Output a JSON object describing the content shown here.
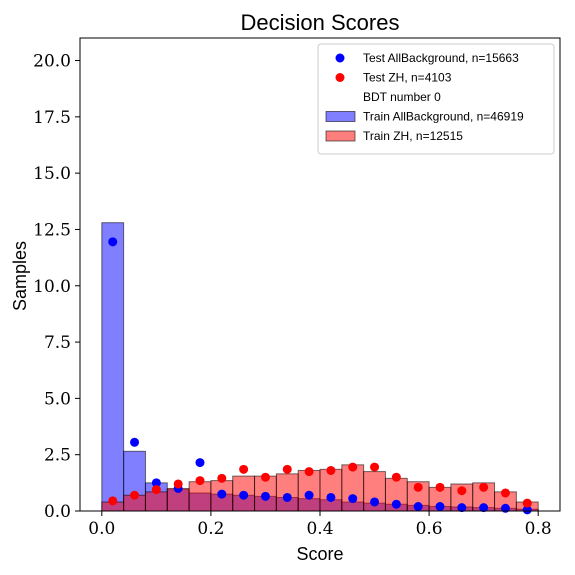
{
  "chart_data": {
    "type": "bar",
    "title": "Decision Scores",
    "xlabel": "Score",
    "ylabel": "Samples",
    "xlim": [
      -0.04,
      0.84
    ],
    "ylim": [
      0,
      21
    ],
    "xticks": [
      0.0,
      0.2,
      0.4,
      0.6,
      0.8
    ],
    "xtick_labels": [
      "0.0",
      "0.2",
      "0.4",
      "0.6",
      "0.8"
    ],
    "yticks": [
      0.0,
      2.5,
      5.0,
      7.5,
      10.0,
      12.5,
      15.0,
      17.5,
      20.0
    ],
    "ytick_labels": [
      "0.0",
      "2.5",
      "5.0",
      "7.5",
      "10.0",
      "12.5",
      "15.0",
      "17.5",
      "20.0"
    ],
    "grid": false,
    "legend_position": "top-right",
    "bin_edges": [
      0.0,
      0.04,
      0.08,
      0.12,
      0.16,
      0.2,
      0.24,
      0.28,
      0.32,
      0.36,
      0.4,
      0.44,
      0.48,
      0.52,
      0.56,
      0.6,
      0.64,
      0.68,
      0.72,
      0.76,
      0.8
    ],
    "legend_note": "BDT number 0",
    "histograms": [
      {
        "name": "Train AllBackground, n=46919",
        "color": "#0000ff",
        "values": [
          12.8,
          2.65,
          1.25,
          0.95,
          0.8,
          0.75,
          0.7,
          0.65,
          0.6,
          0.55,
          0.5,
          0.4,
          0.35,
          0.3,
          0.25,
          0.2,
          0.18,
          0.15,
          0.12,
          0.08
        ]
      },
      {
        "name": "Train ZH, n=12515",
        "color": "#ff0000",
        "values": [
          0.4,
          0.7,
          0.85,
          1.0,
          1.3,
          1.35,
          1.55,
          1.55,
          1.65,
          1.8,
          1.85,
          2.05,
          1.75,
          1.45,
          1.3,
          1.05,
          1.2,
          1.25,
          0.85,
          0.4
        ]
      }
    ],
    "points": [
      {
        "name": "Test AllBackground, n=15663",
        "color": "#0000ff",
        "x": [
          0.02,
          0.06,
          0.1,
          0.14,
          0.18,
          0.22,
          0.26,
          0.3,
          0.34,
          0.38,
          0.42,
          0.46,
          0.5,
          0.54,
          0.58,
          0.62,
          0.66,
          0.7,
          0.74,
          0.78
        ],
        "y": [
          11.95,
          3.05,
          1.25,
          1.0,
          2.15,
          0.75,
          0.7,
          0.65,
          0.6,
          0.7,
          0.6,
          0.55,
          0.4,
          0.3,
          0.2,
          0.2,
          0.15,
          0.15,
          0.12,
          0.05
        ]
      },
      {
        "name": "Test ZH, n=4103",
        "color": "#ff0000",
        "x": [
          0.02,
          0.06,
          0.1,
          0.14,
          0.18,
          0.22,
          0.26,
          0.3,
          0.34,
          0.38,
          0.42,
          0.46,
          0.5,
          0.54,
          0.58,
          0.62,
          0.66,
          0.7,
          0.74,
          0.78
        ],
        "y": [
          0.45,
          0.7,
          0.95,
          1.2,
          1.35,
          1.45,
          1.85,
          1.5,
          1.85,
          1.75,
          1.8,
          1.95,
          1.95,
          1.5,
          1.05,
          1.05,
          0.9,
          1.05,
          0.8,
          0.35
        ]
      }
    ]
  }
}
